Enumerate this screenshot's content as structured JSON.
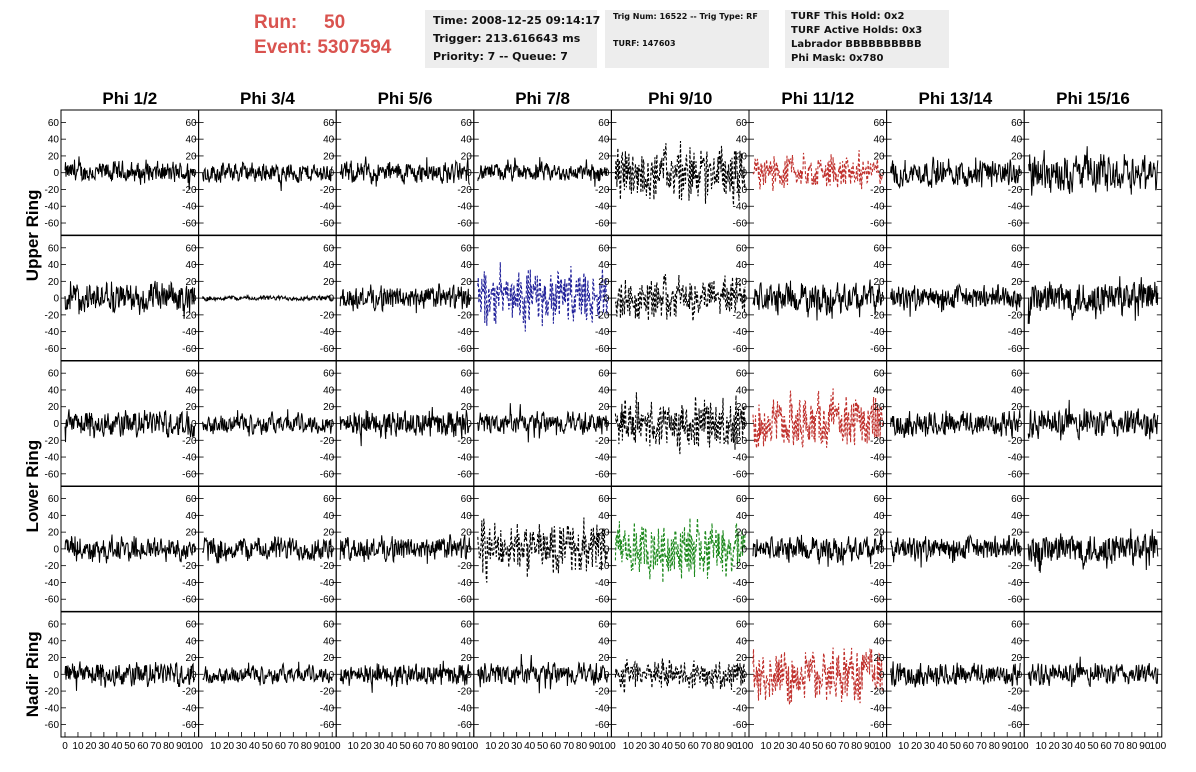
{
  "header": {
    "run_label": "Run:",
    "run_value": "50",
    "event_label": "Event:",
    "event_value": "5307594",
    "color": "#d9534f"
  },
  "info_box_1": {
    "time": "Time: 2008-12-25 09:14:17",
    "trigger": "Trigger: 213.616643 ms",
    "priority": "Priority: 7 -- Queue: 7"
  },
  "info_box_2": {
    "trig": "Trig Num: 16522 -- Trig Type: RF",
    "turf": "TURF: 147603"
  },
  "info_box_3": {
    "turf_hold": "TURF This Hold: 0x2",
    "turf_active": "TURF Active Holds: 0x3",
    "labrador": "Labrador BBBBBBBBBB",
    "phi_mask": "Phi Mask: 0x780"
  },
  "chart_data": {
    "type": "line",
    "layout": "small-multiples grid, 5 rows x 8 columns",
    "column_titles": [
      "Phi 1/2",
      "Phi 3/4",
      "Phi 5/6",
      "Phi 7/8",
      "Phi 9/10",
      "Phi 11/12",
      "Phi 13/14",
      "Phi 15/16"
    ],
    "row_groups": [
      {
        "label": "Upper Ring",
        "rows": [
          0,
          1
        ]
      },
      {
        "label": "Lower Ring",
        "rows": [
          2,
          3
        ]
      },
      {
        "label": "Nadir Ring",
        "rows": [
          4
        ]
      }
    ],
    "xlim": [
      0,
      100
    ],
    "ylim": [
      -70,
      70
    ],
    "y_ticks": [
      60,
      40,
      20,
      0,
      -20,
      -40,
      -60
    ],
    "y_tick_labels": [
      "60",
      "40",
      "20",
      "0",
      "-20",
      "-40",
      "-60"
    ],
    "x_tick_labels_first": [
      "0",
      "10",
      "20",
      "30",
      "40",
      "50",
      "60",
      "70",
      "80",
      "90",
      "100"
    ],
    "x_tick_labels_other": [
      "10",
      "20",
      "30",
      "40",
      "50",
      "60",
      "70",
      "80",
      "90",
      "100"
    ],
    "x_tick_labels_last": [
      "10",
      "20",
      "30",
      "40",
      "50",
      "60",
      "70",
      "80",
      "90",
      "100"
    ],
    "colors": {
      "normal": "#000000",
      "black_dashed": "#000000",
      "red": "#c0302c",
      "blue": "#22229a",
      "green": "#1e8a1e"
    },
    "panels": [
      [
        "normal",
        "normal",
        "normal",
        "normal",
        "black_dashed",
        "red",
        "normal",
        "normal"
      ],
      [
        "normal",
        "normal",
        "normal",
        "blue",
        "black_dashed",
        "normal",
        "normal",
        "normal"
      ],
      [
        "normal",
        "normal",
        "normal",
        "normal",
        "black_dashed",
        "red",
        "normal",
        "normal"
      ],
      [
        "normal",
        "normal",
        "normal",
        "black_dashed",
        "green",
        "normal",
        "normal",
        "normal"
      ],
      [
        "normal",
        "normal",
        "normal",
        "normal",
        "black_dashed",
        "red",
        "normal",
        "normal"
      ]
    ],
    "amplitudes": [
      [
        18,
        16,
        18,
        15,
        40,
        25,
        22,
        30
      ],
      [
        25,
        4,
        20,
        42,
        30,
        25,
        20,
        30
      ],
      [
        22,
        16,
        22,
        18,
        38,
        38,
        22,
        24
      ],
      [
        20,
        20,
        20,
        38,
        40,
        20,
        20,
        28
      ],
      [
        20,
        14,
        18,
        18,
        22,
        40,
        20,
        18
      ]
    ]
  }
}
